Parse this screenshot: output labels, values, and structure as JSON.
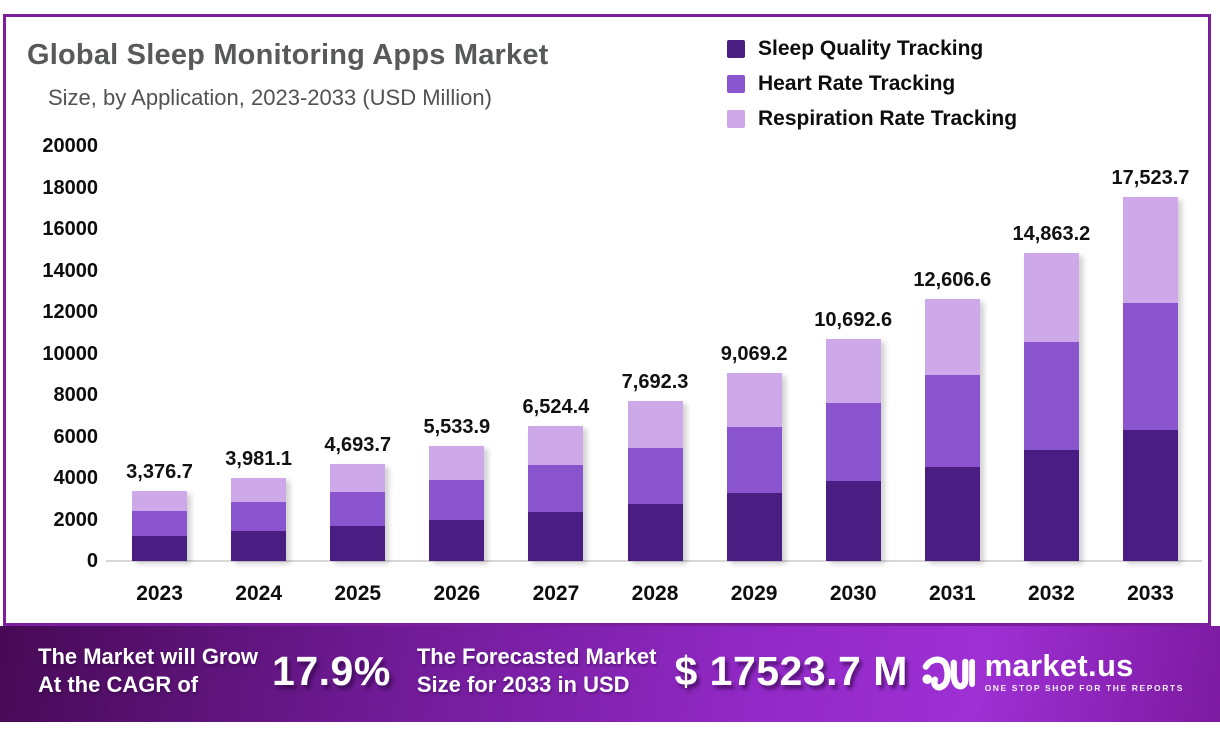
{
  "header": {
    "title": "Global Sleep Monitoring Apps Market",
    "subtitle": "Size, by Application, 2023-2033 (USD Million)"
  },
  "colors": {
    "card_border": "#7c1f9f",
    "title_gray": "#58595b",
    "baseline_gray": "#d8d8d8",
    "banner_gradient": [
      "#470a55",
      "#6d1a92",
      "#9229c6",
      "#9e30d4",
      "#7c1aa0"
    ]
  },
  "legend": [
    {
      "label": "Sleep Quality Tracking",
      "color": "#491d82"
    },
    {
      "label": "Heart Rate Tracking",
      "color": "#8a54cf"
    },
    {
      "label": "Respiration Rate Tracking",
      "color": "#cda9e9"
    }
  ],
  "chart_data": {
    "type": "bar",
    "stacked": true,
    "title": "Global Sleep Monitoring Apps Market Size, by Application, 2023-2033 (USD Million)",
    "xlabel": "",
    "ylabel": "",
    "ylim": [
      0,
      20000
    ],
    "ytick_step": 2000,
    "grid": false,
    "legend_position": "top-right",
    "categories": [
      "2023",
      "2024",
      "2025",
      "2026",
      "2027",
      "2028",
      "2029",
      "2030",
      "2031",
      "2032",
      "2033"
    ],
    "series": [
      {
        "name": "Sleep Quality Tracking",
        "color": "#491d82",
        "values": [
          1215.6,
          1433.2,
          1689.7,
          1992.2,
          2348.8,
          2769.2,
          3264.9,
          3849.3,
          4538.4,
          5350.8,
          6308.5
        ]
      },
      {
        "name": "Heart Rate Tracking",
        "color": "#8a54cf",
        "values": [
          1181.8,
          1393.4,
          1642.8,
          1936.9,
          2283.5,
          2692.3,
          3174.2,
          3742.4,
          4412.3,
          5202.1,
          6133.3
        ]
      },
      {
        "name": "Respiration Rate Tracking",
        "color": "#cda9e9",
        "values": [
          979.3,
          1154.5,
          1361.2,
          1604.8,
          1892.1,
          2230.8,
          2630.1,
          3100.9,
          3655.9,
          4310.3,
          5081.9
        ]
      }
    ],
    "totals": [
      3376.7,
      3981.1,
      4693.7,
      5533.9,
      6524.4,
      7692.3,
      9069.2,
      10692.6,
      12606.6,
      14863.2,
      17523.7
    ],
    "total_labels": [
      "3,376.7",
      "3,981.1",
      "4,693.7",
      "5,533.9",
      "6,524.4",
      "7,692.3",
      "9,069.2",
      "10,692.6",
      "12,606.6",
      "14,863.2",
      "17,523.7"
    ]
  },
  "footer": {
    "left_line1": "The Market will Grow",
    "left_line2": "At the CAGR of",
    "cagr": "17.9%",
    "mid_line1": "The Forecasted Market",
    "mid_line2": "Size for 2033 in USD",
    "forecast_value": "$ 17523.7 M",
    "brand": "market.us",
    "tagline": "ONE STOP SHOP FOR THE REPORTS"
  }
}
